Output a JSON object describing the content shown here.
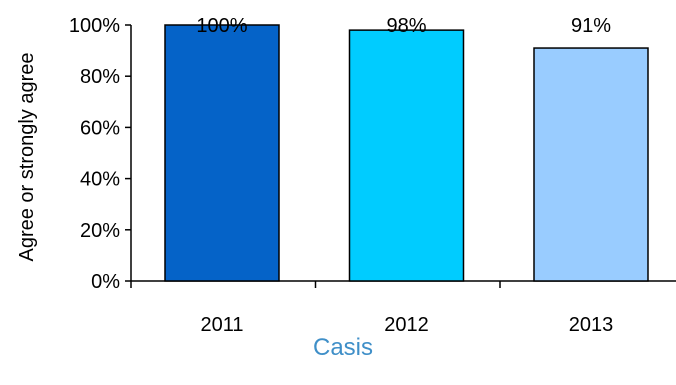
{
  "chart_data": {
    "type": "bar",
    "categories": [
      "2011",
      "2012",
      "2013"
    ],
    "values": [
      100,
      98,
      91
    ],
    "data_labels": [
      "100%",
      "98%",
      "91%"
    ],
    "ylabel": "Agree or strongly agree",
    "xlabel": "Casis",
    "ylim": [
      0,
      100
    ],
    "yticks": [
      0,
      20,
      40,
      60,
      80,
      100
    ],
    "ytick_labels": [
      "0%",
      "20%",
      "40%",
      "60%",
      "80%",
      "100%"
    ],
    "grid": false,
    "legend": "none",
    "colors": [
      "#0563c8",
      "#00ccff",
      "#99ccff"
    ],
    "caption_color": "#3f8fc8"
  }
}
